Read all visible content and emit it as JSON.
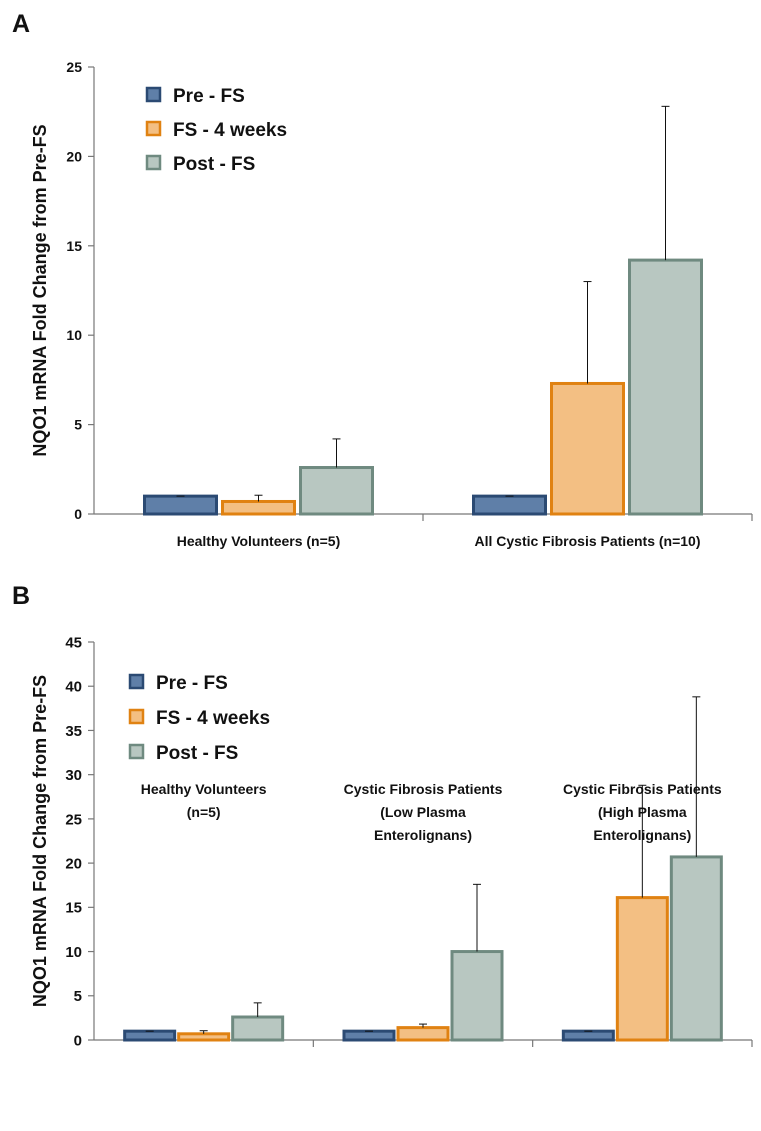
{
  "panels": [
    {
      "label": "A"
    },
    {
      "label": "B"
    }
  ],
  "chart_data": [
    {
      "type": "bar",
      "title": "",
      "ylabel": "NQO1 mRNA Fold Change from Pre-FS",
      "xlabel": "",
      "ylim": [
        0,
        25
      ],
      "yticks": [
        0,
        5,
        10,
        15,
        20,
        25
      ],
      "categories": [
        [
          "Healthy Volunteers (n=5)"
        ],
        [
          "All Cystic Fibrosis Patients (n=10)"
        ]
      ],
      "series": [
        {
          "name": "Pre - FS",
          "color": "#5f7fa8",
          "edge": "#2b4a73",
          "values": [
            1.0,
            1.0
          ],
          "errors": [
            0.0,
            0.0
          ]
        },
        {
          "name": "FS - 4 weeks",
          "color": "#f3bf83",
          "edge": "#e08212",
          "values": [
            0.7,
            7.3
          ],
          "errors": [
            0.35,
            5.7
          ]
        },
        {
          "name": "Post - FS",
          "color": "#b8c7c1",
          "edge": "#6f8a80",
          "values": [
            2.6,
            14.2
          ],
          "errors": [
            1.6,
            8.6
          ]
        }
      ],
      "legend": "top-left",
      "grid": false
    },
    {
      "type": "bar",
      "title": "",
      "ylabel": "NQO1 mRNA Fold Change from Pre-FS",
      "xlabel": "",
      "ylim": [
        0,
        45
      ],
      "yticks": [
        0,
        5,
        10,
        15,
        20,
        25,
        30,
        35,
        40,
        45
      ],
      "categories": [
        [
          "Healthy Volunteers",
          "(n=5)"
        ],
        [
          "Cystic Fibrosis Patients",
          "(Low Plasma",
          "Enterolignans)"
        ],
        [
          "Cystic Fibrosis Patients",
          "(High Plasma",
          "Enterolignans)"
        ]
      ],
      "series": [
        {
          "name": "Pre - FS",
          "color": "#5f7fa8",
          "edge": "#2b4a73",
          "values": [
            1.0,
            1.0,
            1.0
          ],
          "errors": [
            0.0,
            0.0,
            0.0
          ]
        },
        {
          "name": "FS - 4 weeks",
          "color": "#f3bf83",
          "edge": "#e08212",
          "values": [
            0.7,
            1.4,
            16.1
          ],
          "errors": [
            0.35,
            0.4,
            12.7
          ]
        },
        {
          "name": "Post - FS",
          "color": "#b8c7c1",
          "edge": "#6f8a80",
          "values": [
            2.6,
            10.0,
            20.7
          ],
          "errors": [
            1.6,
            7.6,
            18.1
          ]
        }
      ],
      "legend": "top-left",
      "grid": false
    }
  ]
}
